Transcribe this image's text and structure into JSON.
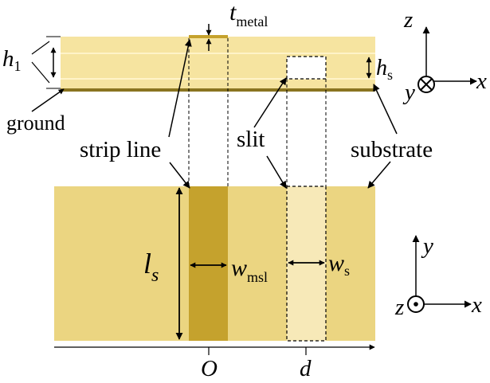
{
  "labels": {
    "h1_sym": "h",
    "h1_sub": "1",
    "ground": "ground",
    "strip_line": "strip line",
    "t_sym": "t",
    "t_sub": "metal",
    "hs_sym": "h",
    "hs_sub": "s",
    "slit": "slit",
    "substrate": "substrate",
    "ls_sym": "l",
    "ls_sub": "s",
    "wmsl_sym": "w",
    "wmsl_sub": "msl",
    "ws_sym": "w",
    "ws_sub": "s",
    "origin": "O",
    "d": "d"
  },
  "axes_top": {
    "z": "z",
    "y": "y",
    "x": "x"
  },
  "axes_bottom": {
    "y": "y",
    "z": "z",
    "x": "x"
  },
  "colors": {
    "substrate": "#F6E4A0",
    "substrate_line": "#FFF3C8",
    "ground": "#8A7420",
    "strip": "#C5A22D",
    "slit_fill": "#F7E9B8",
    "bottom_substrate": "#EBD581"
  }
}
